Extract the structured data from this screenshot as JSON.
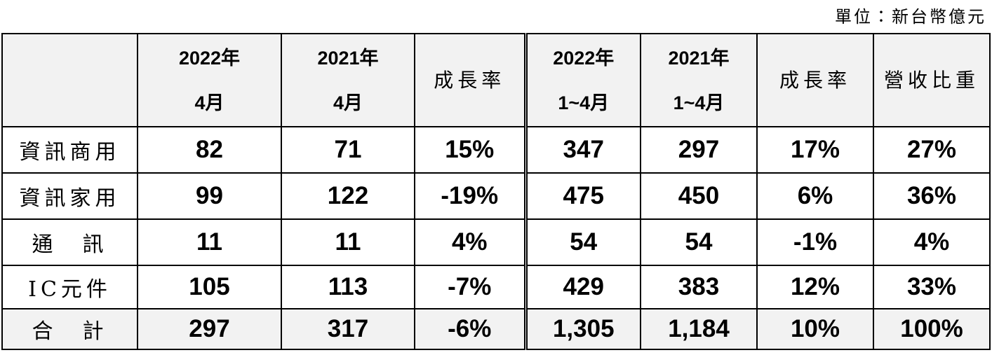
{
  "unit_note": "單位：新台幣億元",
  "table": {
    "header": [
      [],
      [
        "2022年",
        "4月"
      ],
      [
        "2021年",
        "4月"
      ],
      [
        "成長率"
      ],
      [
        "2022年",
        "1~4月"
      ],
      [
        "2021年",
        "1~4月"
      ],
      [
        "成長率"
      ],
      [
        "營收比重"
      ]
    ],
    "rows": [
      [
        "資訊商用",
        "82",
        "71",
        "15%",
        "347",
        "297",
        "17%",
        "27%"
      ],
      [
        "資訊家用",
        "99",
        "122",
        "-19%",
        "475",
        "450",
        "6%",
        "36%"
      ],
      [
        "通　訊",
        "11",
        "11",
        "4%",
        "54",
        "54",
        "-1%",
        "4%"
      ],
      [
        "IC元件",
        "105",
        "113",
        "-7%",
        "429",
        "383",
        "12%",
        "33%"
      ],
      [
        "合　計",
        "297",
        "317",
        "-6%",
        "1,305",
        "1,184",
        "10%",
        "100%"
      ]
    ]
  }
}
